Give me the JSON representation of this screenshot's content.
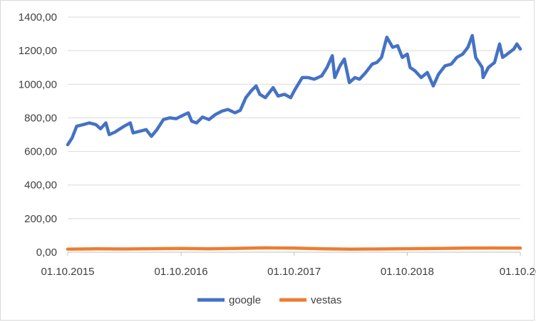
{
  "chart_data": {
    "type": "line",
    "title": "",
    "xlabel": "",
    "ylabel": "",
    "ylim": [
      0,
      1400
    ],
    "grid": "horizontal",
    "legend_position": "bottom",
    "y_ticks": [
      "0,00",
      "200,00",
      "400,00",
      "600,00",
      "800,00",
      "1000,00",
      "1200,00",
      "1400,00"
    ],
    "x_tick_labels": [
      "01.10.2015",
      "01.10.2016",
      "01.10.2017",
      "01.10.2018",
      "01.10.20"
    ],
    "x_tick_dates": [
      "2015-10-01",
      "2016-10-01",
      "2017-10-01",
      "2018-10-01",
      "2019-10-01"
    ],
    "series": [
      {
        "name": "google",
        "color": "#4472C4",
        "points": [
          [
            "2015-10-01",
            640
          ],
          [
            "2015-10-15",
            680
          ],
          [
            "2015-10-30",
            750
          ],
          [
            "2015-11-20",
            760
          ],
          [
            "2015-12-10",
            770
          ],
          [
            "2015-12-31",
            760
          ],
          [
            "2016-01-15",
            735
          ],
          [
            "2016-02-01",
            770
          ],
          [
            "2016-02-12",
            700
          ],
          [
            "2016-03-01",
            715
          ],
          [
            "2016-03-31",
            750
          ],
          [
            "2016-04-20",
            770
          ],
          [
            "2016-04-29",
            710
          ],
          [
            "2016-05-20",
            720
          ],
          [
            "2016-06-10",
            730
          ],
          [
            "2016-06-27",
            690
          ],
          [
            "2016-07-15",
            730
          ],
          [
            "2016-08-05",
            790
          ],
          [
            "2016-08-25",
            800
          ],
          [
            "2016-09-15",
            795
          ],
          [
            "2016-10-01",
            810
          ],
          [
            "2016-10-24",
            830
          ],
          [
            "2016-11-04",
            780
          ],
          [
            "2016-11-20",
            770
          ],
          [
            "2016-12-09",
            805
          ],
          [
            "2016-12-30",
            790
          ],
          [
            "2017-01-20",
            820
          ],
          [
            "2017-02-10",
            840
          ],
          [
            "2017-03-01",
            850
          ],
          [
            "2017-03-24",
            830
          ],
          [
            "2017-04-10",
            845
          ],
          [
            "2017-04-28",
            920
          ],
          [
            "2017-05-15",
            960
          ],
          [
            "2017-05-31",
            990
          ],
          [
            "2017-06-12",
            940
          ],
          [
            "2017-06-30",
            920
          ],
          [
            "2017-07-25",
            980
          ],
          [
            "2017-08-10",
            930
          ],
          [
            "2017-08-31",
            940
          ],
          [
            "2017-09-20",
            920
          ],
          [
            "2017-10-01",
            960
          ],
          [
            "2017-10-27",
            1040
          ],
          [
            "2017-11-15",
            1040
          ],
          [
            "2017-12-05",
            1030
          ],
          [
            "2017-12-29",
            1050
          ],
          [
            "2018-01-15",
            1100
          ],
          [
            "2018-02-01",
            1170
          ],
          [
            "2018-02-09",
            1040
          ],
          [
            "2018-02-26",
            1110
          ],
          [
            "2018-03-12",
            1150
          ],
          [
            "2018-03-28",
            1010
          ],
          [
            "2018-04-15",
            1040
          ],
          [
            "2018-04-30",
            1030
          ],
          [
            "2018-05-20",
            1070
          ],
          [
            "2018-06-10",
            1120
          ],
          [
            "2018-06-25",
            1130
          ],
          [
            "2018-07-10",
            1160
          ],
          [
            "2018-07-27",
            1280
          ],
          [
            "2018-08-15",
            1220
          ],
          [
            "2018-08-31",
            1230
          ],
          [
            "2018-09-15",
            1160
          ],
          [
            "2018-10-01",
            1180
          ],
          [
            "2018-10-10",
            1100
          ],
          [
            "2018-10-26",
            1080
          ],
          [
            "2018-11-15",
            1040
          ],
          [
            "2018-12-05",
            1070
          ],
          [
            "2018-12-24",
            990
          ],
          [
            "2019-01-10",
            1060
          ],
          [
            "2019-01-31",
            1110
          ],
          [
            "2019-02-20",
            1120
          ],
          [
            "2019-03-10",
            1160
          ],
          [
            "2019-03-29",
            1180
          ],
          [
            "2019-04-15",
            1220
          ],
          [
            "2019-04-29",
            1290
          ],
          [
            "2019-05-10",
            1160
          ],
          [
            "2019-05-31",
            1100
          ],
          [
            "2019-06-03",
            1040
          ],
          [
            "2019-06-20",
            1100
          ],
          [
            "2019-07-10",
            1130
          ],
          [
            "2019-07-26",
            1240
          ],
          [
            "2019-08-05",
            1160
          ],
          [
            "2019-08-20",
            1180
          ],
          [
            "2019-09-10",
            1210
          ],
          [
            "2019-09-20",
            1240
          ],
          [
            "2019-10-01",
            1210
          ]
        ]
      },
      {
        "name": "vestas",
        "color": "#ED7D31",
        "points": [
          [
            "2015-10-01",
            18
          ],
          [
            "2016-01-01",
            20
          ],
          [
            "2016-04-01",
            19
          ],
          [
            "2016-07-01",
            21
          ],
          [
            "2016-10-01",
            22
          ],
          [
            "2017-01-01",
            20
          ],
          [
            "2017-04-01",
            23
          ],
          [
            "2017-07-01",
            26
          ],
          [
            "2017-10-01",
            24
          ],
          [
            "2018-01-01",
            20
          ],
          [
            "2018-04-01",
            18
          ],
          [
            "2018-07-01",
            19
          ],
          [
            "2018-10-01",
            21
          ],
          [
            "2019-01-01",
            22
          ],
          [
            "2019-04-01",
            24
          ],
          [
            "2019-07-01",
            25
          ],
          [
            "2019-10-01",
            24
          ]
        ]
      }
    ]
  }
}
